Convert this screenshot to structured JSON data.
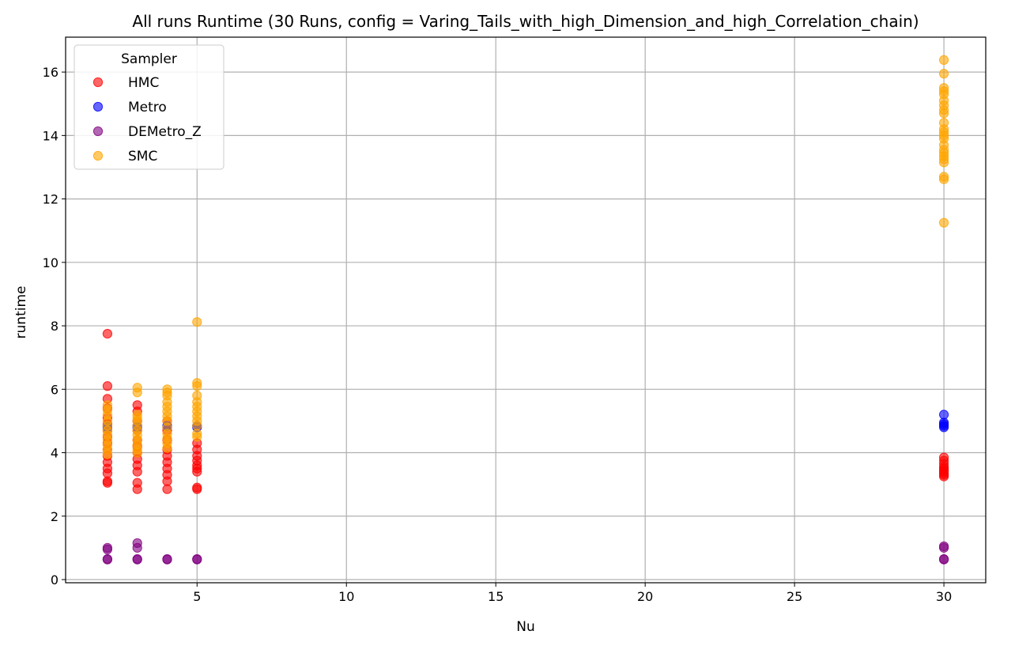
{
  "chart_data": {
    "type": "scatter",
    "title": "All runs Runtime (30 Runs, config = Varing_Tails_with_high_Dimension_and_high_Correlation_chain)",
    "xlabel": "Nu",
    "ylabel": "runtime",
    "xlim": [
      0.6,
      31.4
    ],
    "ylim": [
      -0.1,
      17.1
    ],
    "xticks": [
      5,
      10,
      15,
      20,
      25,
      30
    ],
    "yticks": [
      0,
      2,
      4,
      6,
      8,
      10,
      12,
      14,
      16
    ],
    "grid": true,
    "legend": {
      "title": "Sampler",
      "placement": "top-left"
    },
    "series": [
      {
        "name": "HMC",
        "color": "#ff0000",
        "points": [
          [
            2,
            7.75
          ],
          [
            2,
            6.1
          ],
          [
            2,
            5.7
          ],
          [
            2,
            5.4
          ],
          [
            2,
            5.1
          ],
          [
            2,
            4.9
          ],
          [
            2,
            4.7
          ],
          [
            2,
            4.5
          ],
          [
            2,
            4.3
          ],
          [
            2,
            4.1
          ],
          [
            2,
            3.9
          ],
          [
            2,
            3.7
          ],
          [
            2,
            3.5
          ],
          [
            2,
            3.35
          ],
          [
            2,
            3.1
          ],
          [
            2,
            3.05
          ],
          [
            3,
            5.5
          ],
          [
            3,
            5.3
          ],
          [
            3,
            5.0
          ],
          [
            3,
            4.7
          ],
          [
            3,
            4.4
          ],
          [
            3,
            4.2
          ],
          [
            3,
            4.0
          ],
          [
            3,
            3.8
          ],
          [
            3,
            3.6
          ],
          [
            3,
            3.4
          ],
          [
            3,
            3.05
          ],
          [
            3,
            2.85
          ],
          [
            4,
            5.0
          ],
          [
            4,
            4.7
          ],
          [
            4,
            4.4
          ],
          [
            4,
            4.1
          ],
          [
            4,
            3.9
          ],
          [
            4,
            3.7
          ],
          [
            4,
            3.5
          ],
          [
            4,
            3.3
          ],
          [
            4,
            3.1
          ],
          [
            4,
            2.85
          ],
          [
            5,
            4.3
          ],
          [
            5,
            4.1
          ],
          [
            5,
            3.9
          ],
          [
            5,
            3.75
          ],
          [
            5,
            3.6
          ],
          [
            5,
            3.5
          ],
          [
            5,
            3.4
          ],
          [
            5,
            2.9
          ],
          [
            5,
            2.85
          ],
          [
            30,
            3.85
          ],
          [
            30,
            3.75
          ],
          [
            30,
            3.65
          ],
          [
            30,
            3.55
          ],
          [
            30,
            3.5
          ],
          [
            30,
            3.45
          ],
          [
            30,
            3.4
          ],
          [
            30,
            3.35
          ],
          [
            30,
            3.3
          ],
          [
            30,
            3.25
          ]
        ]
      },
      {
        "name": "Metro",
        "color": "#0000ff",
        "points": [
          [
            2,
            4.85
          ],
          [
            2,
            4.8
          ],
          [
            3,
            4.85
          ],
          [
            3,
            4.8
          ],
          [
            4,
            4.85
          ],
          [
            4,
            4.8
          ],
          [
            5,
            4.85
          ],
          [
            5,
            4.8
          ],
          [
            30,
            5.2
          ],
          [
            30,
            4.95
          ],
          [
            30,
            4.9
          ],
          [
            30,
            4.85
          ],
          [
            30,
            4.8
          ]
        ]
      },
      {
        "name": "DEMetro_Z",
        "color": "#800080",
        "points": [
          [
            2,
            1.0
          ],
          [
            2,
            0.95
          ],
          [
            2,
            0.65
          ],
          [
            2,
            0.63
          ],
          [
            3,
            1.15
          ],
          [
            3,
            1.0
          ],
          [
            3,
            0.65
          ],
          [
            3,
            0.63
          ],
          [
            4,
            0.65
          ],
          [
            4,
            0.63
          ],
          [
            5,
            0.65
          ],
          [
            5,
            0.63
          ],
          [
            30,
            1.05
          ],
          [
            30,
            1.0
          ],
          [
            30,
            0.65
          ],
          [
            30,
            0.63
          ]
        ]
      },
      {
        "name": "SMC",
        "color": "#ffa500",
        "points": [
          [
            2,
            5.5
          ],
          [
            2,
            5.35
          ],
          [
            2,
            5.2
          ],
          [
            2,
            5.0
          ],
          [
            2,
            4.85
          ],
          [
            2,
            4.7
          ],
          [
            2,
            4.55
          ],
          [
            2,
            4.4
          ],
          [
            2,
            4.25
          ],
          [
            2,
            4.1
          ],
          [
            2,
            3.95
          ],
          [
            3,
            6.05
          ],
          [
            3,
            5.9
          ],
          [
            3,
            5.2
          ],
          [
            3,
            5.1
          ],
          [
            3,
            5.0
          ],
          [
            3,
            4.85
          ],
          [
            3,
            4.7
          ],
          [
            3,
            4.55
          ],
          [
            3,
            4.4
          ],
          [
            3,
            4.25
          ],
          [
            3,
            4.1
          ],
          [
            3,
            4.0
          ],
          [
            4,
            6.0
          ],
          [
            4,
            5.9
          ],
          [
            4,
            5.8
          ],
          [
            4,
            5.6
          ],
          [
            4,
            5.45
          ],
          [
            4,
            5.3
          ],
          [
            4,
            5.15
          ],
          [
            4,
            5.0
          ],
          [
            4,
            4.8
          ],
          [
            4,
            4.6
          ],
          [
            4,
            4.45
          ],
          [
            4,
            4.3
          ],
          [
            4,
            4.15
          ],
          [
            5,
            8.12
          ],
          [
            5,
            6.2
          ],
          [
            5,
            6.1
          ],
          [
            5,
            5.8
          ],
          [
            5,
            5.6
          ],
          [
            5,
            5.45
          ],
          [
            5,
            5.3
          ],
          [
            5,
            5.15
          ],
          [
            5,
            5.0
          ],
          [
            5,
            4.85
          ],
          [
            5,
            4.6
          ],
          [
            5,
            4.5
          ],
          [
            30,
            16.38
          ],
          [
            30,
            15.95
          ],
          [
            30,
            15.5
          ],
          [
            30,
            15.4
          ],
          [
            30,
            15.3
          ],
          [
            30,
            15.1
          ],
          [
            30,
            14.95
          ],
          [
            30,
            14.8
          ],
          [
            30,
            14.7
          ],
          [
            30,
            14.4
          ],
          [
            30,
            14.2
          ],
          [
            30,
            14.1
          ],
          [
            30,
            14.0
          ],
          [
            30,
            13.9
          ],
          [
            30,
            13.7
          ],
          [
            30,
            13.55
          ],
          [
            30,
            13.45
          ],
          [
            30,
            13.35
          ],
          [
            30,
            13.25
          ],
          [
            30,
            13.15
          ],
          [
            30,
            12.7
          ],
          [
            30,
            12.62
          ],
          [
            30,
            11.25
          ]
        ]
      }
    ]
  }
}
